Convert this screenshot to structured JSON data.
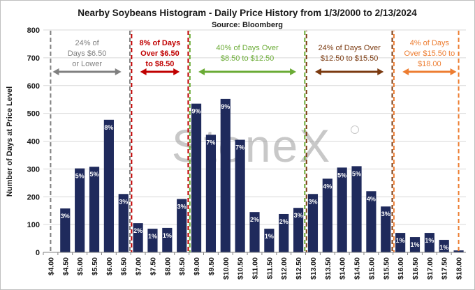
{
  "chart_data": {
    "type": "bar",
    "title": "Nearby Soybeans Histogram - Daily Price History from 1/3/2000 to 2/13/2024",
    "subtitle": "Source: Bloomberg",
    "xlabel": "",
    "ylabel": "Number of Days at Price Level",
    "ylim": [
      0,
      800
    ],
    "yticks": [
      0,
      100,
      200,
      300,
      400,
      500,
      600,
      700,
      800
    ],
    "grid": true,
    "legend": "none",
    "categories": [
      "$4.00",
      "$4.50",
      "$5.00",
      "$5.50",
      "$6.00",
      "$6.50",
      "$7.00",
      "$7.50",
      "$8.00",
      "$8.50",
      "$9.00",
      "$9.50",
      "$10.00",
      "$10.50",
      "$11.00",
      "$11.50",
      "$12.00",
      "$12.50",
      "$13.00",
      "$13.50",
      "$14.00",
      "$14.50",
      "$15.00",
      "$15.50",
      "$16.00",
      "$16.50",
      "$17.00",
      "$17.50",
      "$18.00"
    ],
    "values": [
      0,
      158,
      302,
      308,
      477,
      210,
      105,
      85,
      88,
      192,
      535,
      423,
      552,
      405,
      145,
      85,
      138,
      160,
      210,
      265,
      305,
      310,
      220,
      165,
      70,
      55,
      70,
      45,
      7
    ],
    "bar_color": "#1f2a5c",
    "data_labels": [
      "",
      "3%",
      "5%",
      "5%",
      "8%",
      "3%",
      "2%",
      "1%",
      "1%",
      "3%",
      "9%",
      "7%",
      "9%",
      "7%",
      "2%",
      "1%",
      "2%",
      "3%",
      "3%",
      "4%",
      "5%",
      "5%",
      "4%",
      "3%",
      "1%",
      "1%",
      "1%",
      "1%",
      ""
    ],
    "regions": [
      {
        "text": [
          "24% of",
          "Days $6.50",
          "or Lower"
        ],
        "from": "$4.00",
        "to": "$6.50",
        "color": "#808080",
        "bold": false
      },
      {
        "text": [
          "8% of Days",
          "Over $6.50",
          "to $8.50"
        ],
        "from": "$7.00",
        "to": "$8.50",
        "color": "#c00000",
        "bold": true
      },
      {
        "text": [
          "40% of Days Over",
          "$8.50 to $12.50"
        ],
        "from": "$9.00",
        "to": "$12.50",
        "color": "#6aab35",
        "bold": false
      },
      {
        "text": [
          "24% of Days Over",
          "$12.50 to $15.50"
        ],
        "from": "$13.00",
        "to": "$15.50",
        "color": "#7b3a10",
        "bold": false
      },
      {
        "text": [
          "4% of Days",
          "Over $15.50 to",
          "$18.00"
        ],
        "from": "$16.00",
        "to": "$18.00",
        "color": "#ed7d31",
        "bold": false
      }
    ],
    "dividers": [
      {
        "between": [
          "$6.50",
          "$7.00"
        ],
        "colors": [
          "#808080",
          "#c00000"
        ]
      },
      {
        "between": [
          "$8.50",
          "$9.00"
        ],
        "colors": [
          "#c00000",
          "#6aab35"
        ]
      },
      {
        "between": [
          "$12.50",
          "$13.00"
        ],
        "colors": [
          "#6aab35",
          "#7b3a10"
        ]
      },
      {
        "between": [
          "$15.50",
          "$16.00"
        ],
        "colors": [
          "#7b3a10",
          "#ed7d31"
        ]
      }
    ],
    "edges": [
      {
        "at": "$4.00",
        "color": "#808080"
      },
      {
        "at": "$18.00",
        "color": "#ed7d31"
      }
    ],
    "watermark": "StoneX"
  }
}
